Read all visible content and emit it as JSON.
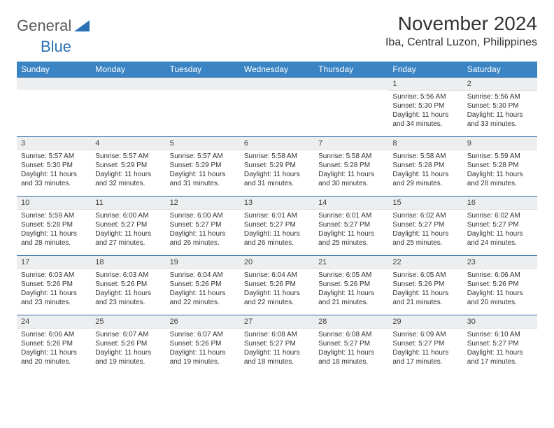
{
  "brand": {
    "part1": "General",
    "part2": "Blue"
  },
  "title": "November 2024",
  "location": "Iba, Central Luzon, Philippines",
  "colors": {
    "header_bg": "#3a84c4",
    "header_text": "#ffffff",
    "rule": "#2d6ea8",
    "daynum_bg": "#eceeef",
    "text": "#333333",
    "brand_gray": "#5a5a5a",
    "brand_blue": "#2a72b5"
  },
  "typography": {
    "title_fontsize": 28,
    "location_fontsize": 16,
    "dayheader_fontsize": 12,
    "cell_fontsize": 10
  },
  "day_headers": [
    "Sunday",
    "Monday",
    "Tuesday",
    "Wednesday",
    "Thursday",
    "Friday",
    "Saturday"
  ],
  "weeks": [
    [
      {
        "n": "",
        "sr": "",
        "ss": "",
        "dl": ""
      },
      {
        "n": "",
        "sr": "",
        "ss": "",
        "dl": ""
      },
      {
        "n": "",
        "sr": "",
        "ss": "",
        "dl": ""
      },
      {
        "n": "",
        "sr": "",
        "ss": "",
        "dl": ""
      },
      {
        "n": "",
        "sr": "",
        "ss": "",
        "dl": ""
      },
      {
        "n": "1",
        "sr": "Sunrise: 5:56 AM",
        "ss": "Sunset: 5:30 PM",
        "dl": "Daylight: 11 hours and 34 minutes."
      },
      {
        "n": "2",
        "sr": "Sunrise: 5:56 AM",
        "ss": "Sunset: 5:30 PM",
        "dl": "Daylight: 11 hours and 33 minutes."
      }
    ],
    [
      {
        "n": "3",
        "sr": "Sunrise: 5:57 AM",
        "ss": "Sunset: 5:30 PM",
        "dl": "Daylight: 11 hours and 33 minutes."
      },
      {
        "n": "4",
        "sr": "Sunrise: 5:57 AM",
        "ss": "Sunset: 5:29 PM",
        "dl": "Daylight: 11 hours and 32 minutes."
      },
      {
        "n": "5",
        "sr": "Sunrise: 5:57 AM",
        "ss": "Sunset: 5:29 PM",
        "dl": "Daylight: 11 hours and 31 minutes."
      },
      {
        "n": "6",
        "sr": "Sunrise: 5:58 AM",
        "ss": "Sunset: 5:29 PM",
        "dl": "Daylight: 11 hours and 31 minutes."
      },
      {
        "n": "7",
        "sr": "Sunrise: 5:58 AM",
        "ss": "Sunset: 5:28 PM",
        "dl": "Daylight: 11 hours and 30 minutes."
      },
      {
        "n": "8",
        "sr": "Sunrise: 5:58 AM",
        "ss": "Sunset: 5:28 PM",
        "dl": "Daylight: 11 hours and 29 minutes."
      },
      {
        "n": "9",
        "sr": "Sunrise: 5:59 AM",
        "ss": "Sunset: 5:28 PM",
        "dl": "Daylight: 11 hours and 28 minutes."
      }
    ],
    [
      {
        "n": "10",
        "sr": "Sunrise: 5:59 AM",
        "ss": "Sunset: 5:28 PM",
        "dl": "Daylight: 11 hours and 28 minutes."
      },
      {
        "n": "11",
        "sr": "Sunrise: 6:00 AM",
        "ss": "Sunset: 5:27 PM",
        "dl": "Daylight: 11 hours and 27 minutes."
      },
      {
        "n": "12",
        "sr": "Sunrise: 6:00 AM",
        "ss": "Sunset: 5:27 PM",
        "dl": "Daylight: 11 hours and 26 minutes."
      },
      {
        "n": "13",
        "sr": "Sunrise: 6:01 AM",
        "ss": "Sunset: 5:27 PM",
        "dl": "Daylight: 11 hours and 26 minutes."
      },
      {
        "n": "14",
        "sr": "Sunrise: 6:01 AM",
        "ss": "Sunset: 5:27 PM",
        "dl": "Daylight: 11 hours and 25 minutes."
      },
      {
        "n": "15",
        "sr": "Sunrise: 6:02 AM",
        "ss": "Sunset: 5:27 PM",
        "dl": "Daylight: 11 hours and 25 minutes."
      },
      {
        "n": "16",
        "sr": "Sunrise: 6:02 AM",
        "ss": "Sunset: 5:27 PM",
        "dl": "Daylight: 11 hours and 24 minutes."
      }
    ],
    [
      {
        "n": "17",
        "sr": "Sunrise: 6:03 AM",
        "ss": "Sunset: 5:26 PM",
        "dl": "Daylight: 11 hours and 23 minutes."
      },
      {
        "n": "18",
        "sr": "Sunrise: 6:03 AM",
        "ss": "Sunset: 5:26 PM",
        "dl": "Daylight: 11 hours and 23 minutes."
      },
      {
        "n": "19",
        "sr": "Sunrise: 6:04 AM",
        "ss": "Sunset: 5:26 PM",
        "dl": "Daylight: 11 hours and 22 minutes."
      },
      {
        "n": "20",
        "sr": "Sunrise: 6:04 AM",
        "ss": "Sunset: 5:26 PM",
        "dl": "Daylight: 11 hours and 22 minutes."
      },
      {
        "n": "21",
        "sr": "Sunrise: 6:05 AM",
        "ss": "Sunset: 5:26 PM",
        "dl": "Daylight: 11 hours and 21 minutes."
      },
      {
        "n": "22",
        "sr": "Sunrise: 6:05 AM",
        "ss": "Sunset: 5:26 PM",
        "dl": "Daylight: 11 hours and 21 minutes."
      },
      {
        "n": "23",
        "sr": "Sunrise: 6:06 AM",
        "ss": "Sunset: 5:26 PM",
        "dl": "Daylight: 11 hours and 20 minutes."
      }
    ],
    [
      {
        "n": "24",
        "sr": "Sunrise: 6:06 AM",
        "ss": "Sunset: 5:26 PM",
        "dl": "Daylight: 11 hours and 20 minutes."
      },
      {
        "n": "25",
        "sr": "Sunrise: 6:07 AM",
        "ss": "Sunset: 5:26 PM",
        "dl": "Daylight: 11 hours and 19 minutes."
      },
      {
        "n": "26",
        "sr": "Sunrise: 6:07 AM",
        "ss": "Sunset: 5:26 PM",
        "dl": "Daylight: 11 hours and 19 minutes."
      },
      {
        "n": "27",
        "sr": "Sunrise: 6:08 AM",
        "ss": "Sunset: 5:27 PM",
        "dl": "Daylight: 11 hours and 18 minutes."
      },
      {
        "n": "28",
        "sr": "Sunrise: 6:08 AM",
        "ss": "Sunset: 5:27 PM",
        "dl": "Daylight: 11 hours and 18 minutes."
      },
      {
        "n": "29",
        "sr": "Sunrise: 6:09 AM",
        "ss": "Sunset: 5:27 PM",
        "dl": "Daylight: 11 hours and 17 minutes."
      },
      {
        "n": "30",
        "sr": "Sunrise: 6:10 AM",
        "ss": "Sunset: 5:27 PM",
        "dl": "Daylight: 11 hours and 17 minutes."
      }
    ]
  ]
}
